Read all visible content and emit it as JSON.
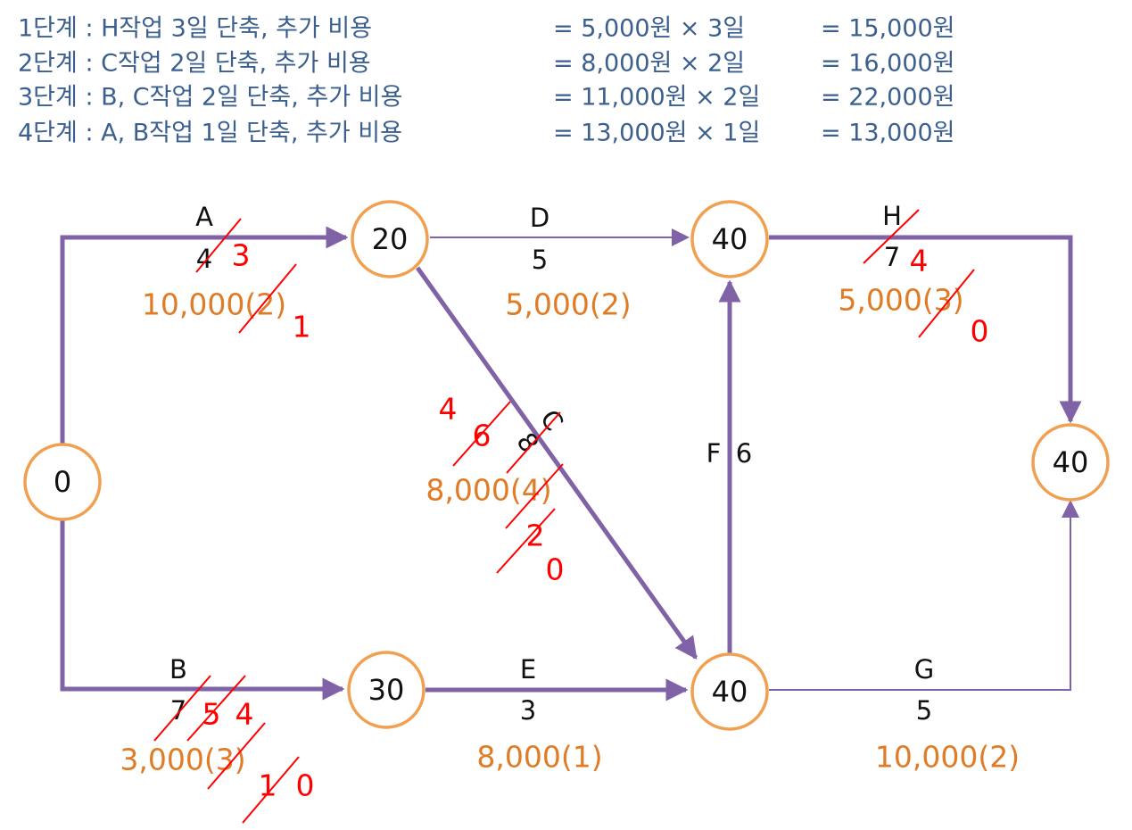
{
  "steps": [
    {
      "label": "1단계 : H작업 3일 단축, 추가 비용",
      "formula": "= 5,000원 × 3일",
      "result": "= 15,000원"
    },
    {
      "label": "2단계 : C작업 2일 단축, 추가 비용",
      "formula": "= 8,000원 × 2일",
      "result": "= 16,000원"
    },
    {
      "label": "3단계 : B, C작업 2일 단축, 추가 비용",
      "formula": "= 11,000원 × 2일",
      "result": "= 22,000원"
    },
    {
      "label": "4단계 : A, B작업 1일 단축, 추가 비용",
      "formula": "= 13,000원 × 1일",
      "result": "= 13,000원"
    }
  ],
  "nodes": [
    "0",
    "20",
    "40",
    "40",
    "40",
    "30"
  ],
  "activities": [
    {
      "name": "A",
      "duration": "4",
      "cost": "10,000(2)",
      "revisions": [
        "3",
        "1"
      ]
    },
    {
      "name": "B",
      "duration": "7",
      "cost": "3,000(3)",
      "revisions": [
        "5",
        "4",
        "1",
        "0"
      ]
    },
    {
      "name": "C",
      "duration": "8",
      "cost": "8,000(4)",
      "revisions": [
        "4",
        "6",
        "2",
        "0"
      ]
    },
    {
      "name": "D",
      "duration": "5",
      "cost": "5,000(2)"
    },
    {
      "name": "E",
      "duration": "3",
      "cost": "8,000(1)"
    },
    {
      "name": "F",
      "duration": "6"
    },
    {
      "name": "G",
      "duration": "5",
      "cost": "10,000(2)"
    },
    {
      "name": "H",
      "duration": "7",
      "cost": "5,000(3)",
      "revisions": [
        "4",
        "0"
      ]
    }
  ]
}
